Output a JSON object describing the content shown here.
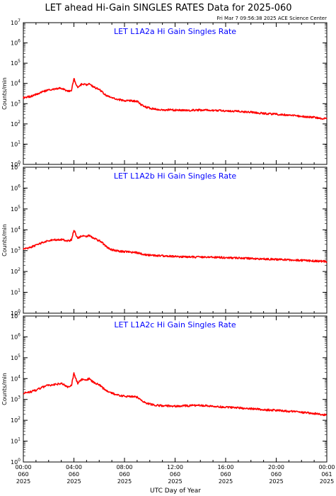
{
  "header": {
    "title": "LET ahead Hi-Gain SINGLES RATES Data for 2025-060",
    "timestamp": "Fri Mar  7 09:56:38 2025 ACE Science Center"
  },
  "colors": {
    "series": "#ff0000",
    "panel_title": "#0000ff",
    "axis": "#000000"
  },
  "chart_data": [
    {
      "type": "line",
      "title": "LET L1A2a Hi Gain Singles Rate",
      "ylabel": "Counts/min",
      "yscale": "log",
      "ylim": [
        1,
        10000000
      ],
      "xlim": [
        0,
        24
      ],
      "y_tick_exponents": [
        0,
        1,
        2,
        3,
        4,
        5,
        6,
        7
      ],
      "series": [
        {
          "x": [
            0,
            0.5,
            1,
            1.5,
            2,
            2.5,
            3,
            3.5,
            3.8,
            4.0,
            4.1,
            4.3,
            4.6,
            5.0,
            5.2,
            5.5,
            6.0,
            6.3,
            6.6,
            7.0,
            7.5,
            8.0,
            8.5,
            9.0,
            9.3,
            9.6,
            10.0,
            10.5,
            11.0,
            12.0,
            13.0,
            14.0,
            15.0,
            16.0,
            17.0,
            18.0,
            19.0,
            20.0,
            21.0,
            22.0,
            23.0,
            23.5,
            24.0
          ],
          "y": [
            2000,
            2200,
            2800,
            3800,
            4800,
            5200,
            5800,
            4000,
            4500,
            18000,
            12000,
            6000,
            9000,
            8500,
            10000,
            7000,
            5000,
            3500,
            2500,
            2000,
            1600,
            1400,
            1400,
            1300,
            900,
            700,
            600,
            520,
            500,
            480,
            470,
            480,
            470,
            440,
            420,
            380,
            330,
            300,
            270,
            240,
            210,
            190,
            180
          ]
        }
      ]
    },
    {
      "type": "line",
      "title": "LET L1A2b Hi Gain Singles Rate",
      "ylabel": "Counts/min",
      "yscale": "log",
      "ylim": [
        1,
        10000000
      ],
      "xlim": [
        0,
        24
      ],
      "y_tick_exponents": [
        0,
        1,
        2,
        3,
        4,
        5,
        6,
        7
      ],
      "series": [
        {
          "x": [
            0,
            0.5,
            1,
            1.5,
            2,
            2.5,
            3,
            3.5,
            3.8,
            4.0,
            4.1,
            4.3,
            4.6,
            5.0,
            5.2,
            5.5,
            6.0,
            6.3,
            6.6,
            7.0,
            7.5,
            8.0,
            8.5,
            9.0,
            9.5,
            10.0,
            11.0,
            12.0,
            13.0,
            14.0,
            15.0,
            16.0,
            17.0,
            18.0,
            19.0,
            20.0,
            21.0,
            22.0,
            23.0,
            24.0
          ],
          "y": [
            1200,
            1400,
            1800,
            2400,
            3000,
            3300,
            3400,
            2900,
            3300,
            10000,
            7000,
            3800,
            5000,
            4800,
            5500,
            4000,
            3000,
            2200,
            1500,
            1100,
            950,
            900,
            850,
            800,
            650,
            600,
            560,
            520,
            500,
            490,
            480,
            460,
            440,
            420,
            400,
            380,
            360,
            340,
            320,
            300
          ]
        }
      ]
    },
    {
      "type": "line",
      "title": "LET L1A2c Hi Gain Singles Rate",
      "ylabel": "Counts/min",
      "yscale": "log",
      "ylim": [
        1,
        10000000
      ],
      "xlim": [
        0,
        24
      ],
      "y_tick_exponents": [
        0,
        1,
        2,
        3,
        4,
        5,
        6,
        7
      ],
      "series": [
        {
          "x": [
            0,
            0.5,
            1,
            1.5,
            2,
            2.5,
            3,
            3.5,
            3.8,
            4.0,
            4.1,
            4.3,
            4.6,
            5.0,
            5.2,
            5.5,
            6.0,
            6.3,
            6.6,
            7.0,
            7.5,
            8.0,
            8.5,
            9.0,
            9.3,
            9.6,
            10.0,
            10.5,
            11.0,
            12.0,
            13.0,
            14.0,
            15.0,
            16.0,
            17.0,
            18.0,
            19.0,
            20.0,
            21.0,
            22.0,
            23.0,
            23.5,
            24.0
          ],
          "y": [
            2000,
            2200,
            2800,
            3800,
            4800,
            5200,
            5800,
            4000,
            4500,
            18000,
            12000,
            6000,
            9000,
            8500,
            10000,
            7000,
            5000,
            3500,
            2500,
            2000,
            1600,
            1400,
            1400,
            1300,
            900,
            700,
            600,
            520,
            500,
            480,
            500,
            520,
            470,
            420,
            400,
            360,
            320,
            300,
            270,
            240,
            210,
            190,
            180
          ]
        }
      ]
    }
  ],
  "x_axis": {
    "label": "UTC Day of Year",
    "ticks": [
      {
        "x": 0,
        "time": "00:00",
        "doy": "060",
        "year": "2025"
      },
      {
        "x": 4,
        "time": "04:00",
        "doy": "060",
        "year": "2025"
      },
      {
        "x": 8,
        "time": "08:00",
        "doy": "060",
        "year": "2025"
      },
      {
        "x": 12,
        "time": "12:00",
        "doy": "060",
        "year": "2025"
      },
      {
        "x": 16,
        "time": "16:00",
        "doy": "060",
        "year": "2025"
      },
      {
        "x": 20,
        "time": "20:00",
        "doy": "060",
        "year": "2025"
      },
      {
        "x": 24,
        "time": "00:00",
        "doy": "061",
        "year": "2025"
      }
    ]
  }
}
